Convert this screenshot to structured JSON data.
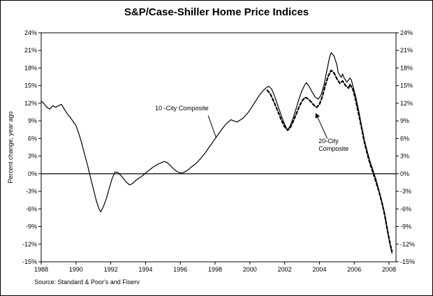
{
  "chart_data": {
    "type": "line",
    "title": "S&P/Case-Shiller Home Price Indices",
    "ylabel": "Percent change, year ago",
    "xlabel": "",
    "source": "Source: Standard & Poor's and Fiserv",
    "xlim": [
      1988,
      2008.4
    ],
    "ylim": [
      -15,
      24
    ],
    "x_ticks": [
      1988,
      1990,
      1992,
      1994,
      1996,
      1998,
      2000,
      2002,
      2004,
      2006,
      2008
    ],
    "y_ticks": [
      24,
      21,
      18,
      15,
      12,
      9,
      6,
      3,
      0,
      -3,
      -6,
      -9,
      -12,
      -15
    ],
    "y_tick_suffix": "%",
    "grid": false,
    "zero_line": true,
    "line_color": "#000000",
    "series": [
      {
        "name": "10-City Composite",
        "style": "solid",
        "points": [
          [
            1988.0,
            12.4
          ],
          [
            1988.17,
            11.9
          ],
          [
            1988.33,
            11.3
          ],
          [
            1988.5,
            11.0
          ],
          [
            1988.67,
            11.6
          ],
          [
            1988.83,
            11.3
          ],
          [
            1989.0,
            11.6
          ],
          [
            1989.17,
            11.8
          ],
          [
            1989.33,
            11.0
          ],
          [
            1989.5,
            10.2
          ],
          [
            1989.67,
            9.6
          ],
          [
            1989.83,
            8.9
          ],
          [
            1990.0,
            8.2
          ],
          [
            1990.17,
            6.8
          ],
          [
            1990.33,
            5.2
          ],
          [
            1990.5,
            3.2
          ],
          [
            1990.67,
            1.4
          ],
          [
            1990.83,
            -0.6
          ],
          [
            1991.0,
            -2.6
          ],
          [
            1991.17,
            -4.6
          ],
          [
            1991.33,
            -6.0
          ],
          [
            1991.42,
            -6.5
          ],
          [
            1991.58,
            -5.6
          ],
          [
            1991.75,
            -4.2
          ],
          [
            1991.92,
            -2.4
          ],
          [
            1992.08,
            -0.8
          ],
          [
            1992.25,
            0.3
          ],
          [
            1992.42,
            0.2
          ],
          [
            1992.58,
            -0.3
          ],
          [
            1992.75,
            -0.9
          ],
          [
            1992.92,
            -1.5
          ],
          [
            1993.08,
            -1.9
          ],
          [
            1993.25,
            -1.7
          ],
          [
            1993.42,
            -1.2
          ],
          [
            1993.58,
            -0.8
          ],
          [
            1993.75,
            -0.5
          ],
          [
            1993.92,
            -0.1
          ],
          [
            1994.08,
            0.3
          ],
          [
            1994.25,
            0.7
          ],
          [
            1994.42,
            1.1
          ],
          [
            1994.58,
            1.4
          ],
          [
            1994.75,
            1.7
          ],
          [
            1994.92,
            1.9
          ],
          [
            1995.08,
            2.1
          ],
          [
            1995.25,
            1.9
          ],
          [
            1995.42,
            1.4
          ],
          [
            1995.58,
            0.9
          ],
          [
            1995.75,
            0.5
          ],
          [
            1995.92,
            0.2
          ],
          [
            1996.08,
            0.1
          ],
          [
            1996.25,
            0.3
          ],
          [
            1996.42,
            0.6
          ],
          [
            1996.58,
            1.0
          ],
          [
            1996.75,
            1.4
          ],
          [
            1996.92,
            1.8
          ],
          [
            1997.08,
            2.3
          ],
          [
            1997.25,
            2.9
          ],
          [
            1997.42,
            3.5
          ],
          [
            1997.58,
            4.2
          ],
          [
            1997.75,
            4.9
          ],
          [
            1997.92,
            5.6
          ],
          [
            1998.08,
            6.3
          ],
          [
            1998.25,
            7.0
          ],
          [
            1998.42,
            7.7
          ],
          [
            1998.58,
            8.3
          ],
          [
            1998.75,
            8.8
          ],
          [
            1998.92,
            9.2
          ],
          [
            1999.08,
            9.0
          ],
          [
            1999.25,
            8.8
          ],
          [
            1999.42,
            9.1
          ],
          [
            1999.58,
            9.4
          ],
          [
            1999.75,
            9.9
          ],
          [
            1999.92,
            10.5
          ],
          [
            2000.08,
            11.2
          ],
          [
            2000.25,
            12.0
          ],
          [
            2000.42,
            12.8
          ],
          [
            2000.58,
            13.5
          ],
          [
            2000.75,
            14.1
          ],
          [
            2000.92,
            14.6
          ],
          [
            2001.08,
            14.9
          ],
          [
            2001.25,
            14.4
          ],
          [
            2001.42,
            13.2
          ],
          [
            2001.58,
            11.8
          ],
          [
            2001.75,
            10.4
          ],
          [
            2001.92,
            9.0
          ],
          [
            2002.08,
            7.9
          ],
          [
            2002.17,
            7.5
          ],
          [
            2002.33,
            8.2
          ],
          [
            2002.5,
            9.6
          ],
          [
            2002.67,
            11.2
          ],
          [
            2002.83,
            12.8
          ],
          [
            2003.0,
            14.2
          ],
          [
            2003.17,
            15.2
          ],
          [
            2003.25,
            15.5
          ],
          [
            2003.42,
            14.8
          ],
          [
            2003.58,
            13.9
          ],
          [
            2003.75,
            13.1
          ],
          [
            2003.92,
            12.7
          ],
          [
            2004.08,
            13.3
          ],
          [
            2004.25,
            15.0
          ],
          [
            2004.42,
            17.5
          ],
          [
            2004.58,
            19.8
          ],
          [
            2004.67,
            20.6
          ],
          [
            2004.83,
            20.1
          ],
          [
            2005.0,
            18.6
          ],
          [
            2005.08,
            17.2
          ],
          [
            2005.25,
            16.4
          ],
          [
            2005.33,
            17.0
          ],
          [
            2005.42,
            16.3
          ],
          [
            2005.58,
            15.6
          ],
          [
            2005.75,
            16.3
          ],
          [
            2005.83,
            16.0
          ],
          [
            2005.92,
            15.0
          ],
          [
            2006.08,
            13.2
          ],
          [
            2006.25,
            10.8
          ],
          [
            2006.42,
            8.2
          ],
          [
            2006.58,
            5.8
          ],
          [
            2006.75,
            3.8
          ],
          [
            2006.92,
            2.0
          ],
          [
            2007.08,
            0.6
          ],
          [
            2007.25,
            -1.0
          ],
          [
            2007.42,
            -2.8
          ],
          [
            2007.58,
            -4.6
          ],
          [
            2007.75,
            -6.8
          ],
          [
            2007.92,
            -9.6
          ],
          [
            2008.08,
            -12.4
          ],
          [
            2008.17,
            -13.6
          ]
        ]
      },
      {
        "name": "20-City Composite",
        "style": "dashed",
        "points": [
          [
            2001.0,
            14.2
          ],
          [
            2001.17,
            13.6
          ],
          [
            2001.33,
            12.6
          ],
          [
            2001.5,
            11.4
          ],
          [
            2001.67,
            10.2
          ],
          [
            2001.83,
            9.0
          ],
          [
            2002.0,
            8.0
          ],
          [
            2002.17,
            7.4
          ],
          [
            2002.33,
            7.9
          ],
          [
            2002.5,
            9.0
          ],
          [
            2002.67,
            10.2
          ],
          [
            2002.83,
            11.4
          ],
          [
            2003.0,
            12.4
          ],
          [
            2003.17,
            13.0
          ],
          [
            2003.33,
            12.8
          ],
          [
            2003.5,
            12.3
          ],
          [
            2003.67,
            11.7
          ],
          [
            2003.83,
            11.3
          ],
          [
            2004.0,
            11.8
          ],
          [
            2004.17,
            13.2
          ],
          [
            2004.33,
            15.0
          ],
          [
            2004.5,
            16.6
          ],
          [
            2004.67,
            17.6
          ],
          [
            2004.83,
            17.2
          ],
          [
            2005.0,
            16.2
          ],
          [
            2005.17,
            15.4
          ],
          [
            2005.33,
            15.8
          ],
          [
            2005.5,
            15.0
          ],
          [
            2005.67,
            14.6
          ],
          [
            2005.75,
            15.2
          ],
          [
            2005.92,
            14.4
          ],
          [
            2006.08,
            12.6
          ],
          [
            2006.25,
            10.2
          ],
          [
            2006.42,
            7.8
          ],
          [
            2006.58,
            5.4
          ],
          [
            2006.75,
            3.4
          ],
          [
            2006.92,
            1.6
          ],
          [
            2007.08,
            0.2
          ],
          [
            2007.25,
            -1.4
          ],
          [
            2007.42,
            -3.0
          ],
          [
            2007.58,
            -4.8
          ],
          [
            2007.75,
            -7.0
          ],
          [
            2007.92,
            -9.8
          ],
          [
            2008.08,
            -12.2
          ],
          [
            2008.17,
            -13.2
          ]
        ]
      }
    ],
    "annotations": [
      {
        "id": "label-10-city",
        "text": "10 -City Composite",
        "x": 1994.55,
        "y": 10.8,
        "leader": {
          "x1": 1997.6,
          "y1": 9.9,
          "x2": 1998.05,
          "y2": 6.2
        },
        "arrow": false
      },
      {
        "id": "label-20-city",
        "lines": [
          "20-City",
          "Composite"
        ],
        "x": 2003.95,
        "y": 5.2,
        "leader": {
          "x1": 2004.45,
          "y1": 6.0,
          "x2": 2003.8,
          "y2": 10.2
        },
        "arrow": true
      }
    ]
  }
}
